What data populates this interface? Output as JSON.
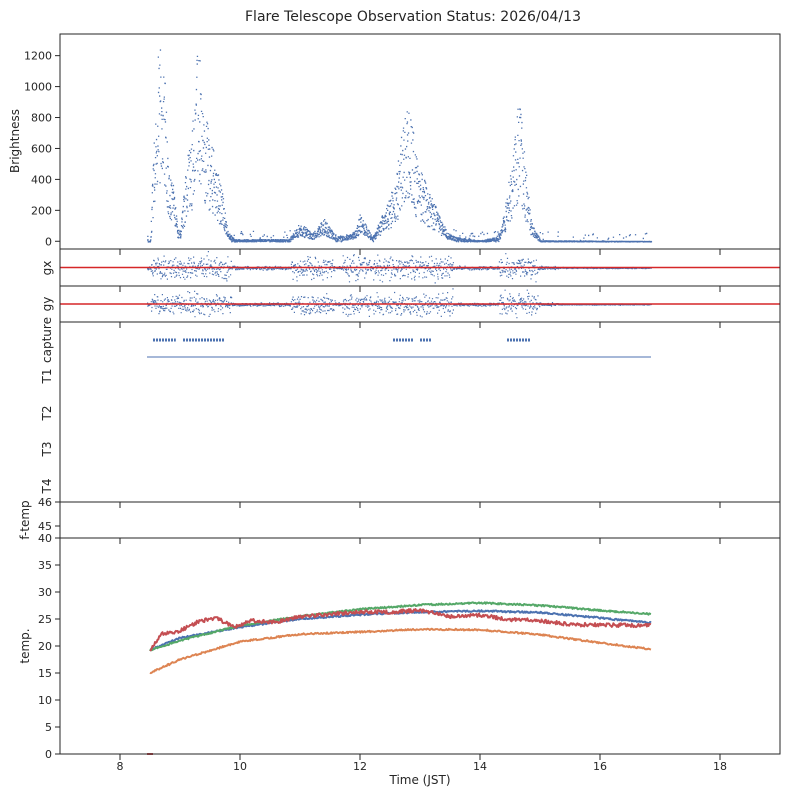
{
  "title": "Flare Telescope Observation Status: 2026/04/13",
  "chart_data": {
    "type": "scatter",
    "title": "Flare Telescope Observation Status: 2026/04/13",
    "xlabel": "Time (JST)",
    "xlim": [
      7.0,
      19.0
    ],
    "xticks": [
      8,
      10,
      12,
      14,
      16,
      18
    ],
    "colors": {
      "blue": "#4c72b0",
      "orange": "#dd8452",
      "green": "#55a868",
      "red": "#c44e52"
    },
    "panels": [
      {
        "id": "brightness",
        "ylabel": "Brightness",
        "ylim": [
          -50,
          1340
        ],
        "yticks": [
          0,
          200,
          400,
          600,
          800,
          1000,
          1200
        ],
        "series": [
          {
            "name": "Brightness",
            "color": "#4c72b0",
            "observation_window": [
              8.45,
              16.85
            ],
            "profile_points": [
              [
                8.45,
                0
              ],
              [
                8.5,
                5
              ],
              [
                8.55,
                500
              ],
              [
                8.62,
                1000
              ],
              [
                8.7,
                1100
              ],
              [
                8.75,
                800
              ],
              [
                8.8,
                450
              ],
              [
                8.88,
                300
              ],
              [
                8.95,
                80
              ],
              [
                9.0,
                60
              ],
              [
                9.1,
                400
              ],
              [
                9.2,
                600
              ],
              [
                9.3,
                1100
              ],
              [
                9.38,
                700
              ],
              [
                9.5,
                550
              ],
              [
                9.6,
                400
              ],
              [
                9.7,
                250
              ],
              [
                9.8,
                50
              ],
              [
                9.9,
                10
              ],
              [
                10.8,
                10
              ],
              [
                11.0,
                100
              ],
              [
                11.2,
                40
              ],
              [
                11.4,
                120
              ],
              [
                11.6,
                20
              ],
              [
                11.9,
                50
              ],
              [
                12.0,
                150
              ],
              [
                12.2,
                20
              ],
              [
                12.45,
                200
              ],
              [
                12.6,
                350
              ],
              [
                12.75,
                700
              ],
              [
                12.85,
                650
              ],
              [
                12.95,
                400
              ],
              [
                13.1,
                300
              ],
              [
                13.3,
                150
              ],
              [
                13.45,
                50
              ],
              [
                13.6,
                20
              ],
              [
                14.0,
                5
              ],
              [
                14.3,
                20
              ],
              [
                14.4,
                150
              ],
              [
                14.55,
                500
              ],
              [
                14.65,
                800
              ],
              [
                14.75,
                400
              ],
              [
                14.85,
                100
              ],
              [
                15.0,
                5
              ],
              [
                16.85,
                2
              ]
            ]
          }
        ]
      },
      {
        "id": "gx",
        "ylabel": "gx",
        "ylim": [
          -1,
          1
        ],
        "series": [
          {
            "name": "gx",
            "color": "#4c72b0",
            "kind": "scatter",
            "observation_window": [
              8.45,
              16.85
            ]
          },
          {
            "name": "gx reference",
            "color": "#d62728",
            "kind": "hline",
            "value": 0
          }
        ]
      },
      {
        "id": "gy",
        "ylabel": "gy",
        "ylim": [
          -1,
          1
        ],
        "series": [
          {
            "name": "gy",
            "color": "#4c72b0",
            "kind": "scatter",
            "observation_window": [
              8.45,
              16.85
            ]
          },
          {
            "name": "gy reference",
            "color": "#d62728",
            "kind": "hline",
            "value": 0
          }
        ]
      },
      {
        "id": "status",
        "ylabels": [
          "capture",
          "T1",
          "T2",
          "T3",
          "T4"
        ],
        "series": [
          {
            "name": "capture",
            "color": "#4c72b0",
            "segments": [
              [
                8.55,
                8.93
              ],
              [
                9.05,
                9.75
              ],
              [
                12.55,
                12.9
              ],
              [
                13.0,
                13.2
              ],
              [
                14.45,
                14.85
              ]
            ]
          },
          {
            "name": "T1",
            "color": "#4c72b0",
            "segments": [
              [
                8.45,
                16.85
              ]
            ]
          }
        ]
      },
      {
        "id": "ftemp",
        "ylabel": "f-temp",
        "ylim": [
          44.5,
          46
        ],
        "yticks": [
          45,
          46
        ],
        "series": [
          {
            "name": "f-temp",
            "color": "#4c72b0",
            "values": []
          }
        ]
      },
      {
        "id": "temp",
        "ylabel": "temp.",
        "ylim": [
          0,
          40
        ],
        "yticks": [
          0,
          5,
          10,
          15,
          20,
          25,
          30,
          35,
          40
        ],
        "series": [
          {
            "name": "blue",
            "color": "#4c72b0",
            "points": [
              [
                8.5,
                19.3
              ],
              [
                9.0,
                21.5
              ],
              [
                10.0,
                23.5
              ],
              [
                11.0,
                25.0
              ],
              [
                12.0,
                25.8
              ],
              [
                13.0,
                26.3
              ],
              [
                14.0,
                26.5
              ],
              [
                15.0,
                26.2
              ],
              [
                16.0,
                25.2
              ],
              [
                16.85,
                24.3
              ]
            ]
          },
          {
            "name": "green",
            "color": "#55a868",
            "points": [
              [
                8.5,
                19.2
              ],
              [
                9.0,
                21.0
              ],
              [
                10.0,
                23.8
              ],
              [
                11.0,
                25.5
              ],
              [
                12.0,
                26.8
              ],
              [
                13.0,
                27.6
              ],
              [
                14.0,
                28.0
              ],
              [
                15.0,
                27.5
              ],
              [
                16.0,
                26.6
              ],
              [
                16.85,
                25.9
              ]
            ]
          },
          {
            "name": "red",
            "color": "#c44e52",
            "points": [
              [
                8.5,
                19.3
              ],
              [
                8.7,
                22.2
              ],
              [
                9.0,
                22.8
              ],
              [
                9.3,
                24.5
              ],
              [
                9.6,
                25.2
              ],
              [
                9.9,
                23.5
              ],
              [
                10.2,
                24.7
              ],
              [
                10.6,
                24.4
              ],
              [
                11.0,
                25.4
              ],
              [
                11.5,
                25.9
              ],
              [
                12.0,
                26.3
              ],
              [
                12.5,
                26.3
              ],
              [
                13.0,
                26.6
              ],
              [
                13.5,
                25.5
              ],
              [
                14.0,
                25.7
              ],
              [
                14.5,
                24.9
              ],
              [
                15.0,
                24.7
              ],
              [
                15.5,
                24.0
              ],
              [
                16.0,
                23.9
              ],
              [
                16.85,
                23.8
              ]
            ]
          },
          {
            "name": "orange",
            "color": "#dd8452",
            "points": [
              [
                8.5,
                15.0
              ],
              [
                9.0,
                17.5
              ],
              [
                10.0,
                20.8
              ],
              [
                11.0,
                22.2
              ],
              [
                12.0,
                22.6
              ],
              [
                13.0,
                23.1
              ],
              [
                14.0,
                23.0
              ],
              [
                15.0,
                22.1
              ],
              [
                16.0,
                20.6
              ],
              [
                16.85,
                19.4
              ]
            ]
          }
        ]
      }
    ]
  }
}
